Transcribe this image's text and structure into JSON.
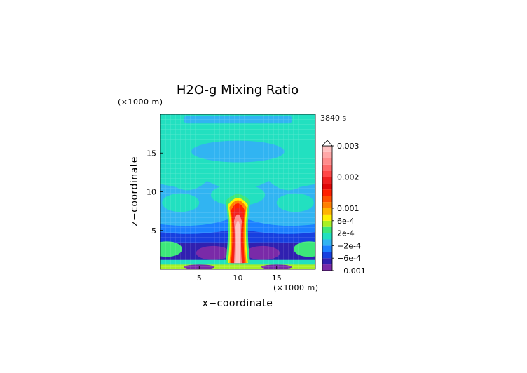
{
  "chart_data": {
    "type": "heatmap",
    "title": "H2O-g Mixing Ratio",
    "time_label": "3840 s",
    "x_unit": "(×1000 m)",
    "y_unit": "(×1000 m)",
    "xlabel": "x−coordinate",
    "ylabel": "z−coordinate",
    "xlim": [
      0,
      20
    ],
    "ylim": [
      0,
      20
    ],
    "x_ticks": [
      "5",
      "10",
      "15"
    ],
    "y_ticks": [
      "5",
      "10",
      "15"
    ],
    "grid": true,
    "colorbar": {
      "labels": [
        "0.003",
        "0.002",
        "0.001",
        "6e-4",
        "2e-4",
        "−2e-4",
        "−6e-4",
        "−0.001"
      ],
      "levels": [
        -0.001,
        -0.0008,
        -0.0006,
        -0.0004,
        -0.0002,
        0,
        0.0002,
        0.0004,
        0.0006,
        0.0008,
        0.001,
        0.0012,
        0.0014,
        0.0016,
        0.0018,
        0.002,
        0.0022,
        0.0024,
        0.0026,
        0.0028,
        0.003
      ],
      "colors": [
        "#7a2aa8",
        "#3020b0",
        "#1740e0",
        "#1b80ff",
        "#31b4f2",
        "#22e0c0",
        "#3de87a",
        "#a8f025",
        "#fff000",
        "#ffb400",
        "#ff8000",
        "#ff5000",
        "#ff2000",
        "#e00808",
        "#f02020",
        "#ff4848",
        "#ff6a6a",
        "#ff8c8c",
        "#ffa8a8",
        "#ffc0c0"
      ]
    },
    "field_features": [
      {
        "kind": "background",
        "x": [
          0,
          20
        ],
        "z": [
          9,
          20
        ],
        "value": -0.0002
      },
      {
        "kind": "band",
        "x": [
          0,
          20
        ],
        "z": [
          3.5,
          9
        ],
        "value": -0.0003
      },
      {
        "kind": "plume",
        "x": [
          9.3,
          10.7
        ],
        "z": [
          0.5,
          9.5
        ],
        "value": 0.002
      },
      {
        "kind": "core",
        "x": [
          9.6,
          10.4
        ],
        "z": [
          4,
          8
        ],
        "value": 0.0027
      },
      {
        "kind": "trough",
        "x": [
          0,
          20
        ],
        "z": [
          0.8,
          3
        ],
        "value": -0.0008
      },
      {
        "kind": "surface-layer",
        "x": [
          0,
          20
        ],
        "z": [
          0,
          0.8
        ],
        "value": 0.0005
      }
    ]
  }
}
